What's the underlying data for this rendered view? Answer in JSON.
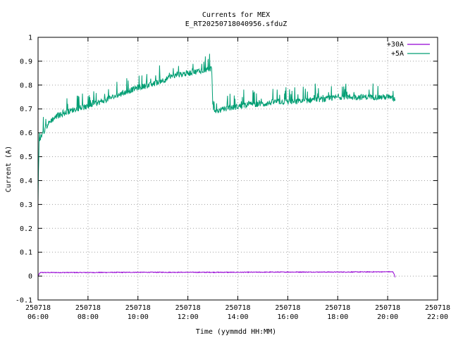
{
  "chart_data": {
    "type": "line",
    "title": "Currents for MEX",
    "subtitle": "E_RT20250718040956.sfduZ",
    "xlabel": "Time (yymmdd HH:MM)",
    "ylabel": "Current (A)",
    "xlim_hours": [
      6,
      22
    ],
    "ylim": [
      -0.1,
      1.0
    ],
    "y_ticks": [
      "-0.1",
      "0",
      "0.1",
      "0.2",
      "0.3",
      "0.4",
      "0.5",
      "0.6",
      "0.7",
      "0.8",
      "0.9",
      "1"
    ],
    "x_ticks": [
      {
        "date": "250718",
        "time": "06:00"
      },
      {
        "date": "250718",
        "time": "08:00"
      },
      {
        "date": "250718",
        "time": "10:00"
      },
      {
        "date": "250718",
        "time": "12:00"
      },
      {
        "date": "250718",
        "time": "14:00"
      },
      {
        "date": "250718",
        "time": "16:00"
      },
      {
        "date": "250718",
        "time": "18:00"
      },
      {
        "date": "250718",
        "time": "20:00"
      },
      {
        "date": "250718",
        "time": "22:00"
      }
    ],
    "grid": true,
    "legend_position": "top-right",
    "series": [
      {
        "name": "+30A",
        "color": "#9400d3",
        "x_hours": [
          6.0,
          6.05,
          6.1,
          6.5,
          8.0,
          10.0,
          12.0,
          14.0,
          16.0,
          18.0,
          20.0,
          20.2,
          20.25,
          20.3
        ],
        "values": [
          0.0,
          0.01,
          0.015,
          0.015,
          0.015,
          0.016,
          0.016,
          0.016,
          0.017,
          0.017,
          0.018,
          0.018,
          0.01,
          -0.005
        ]
      },
      {
        "name": "+5A",
        "color": "#009e73",
        "x_hours": [
          6.0,
          6.02,
          6.05,
          6.1,
          6.2,
          6.3,
          6.5,
          6.75,
          7.0,
          7.5,
          8.0,
          8.5,
          9.0,
          9.5,
          10.0,
          10.5,
          11.0,
          11.5,
          12.0,
          12.5,
          12.95,
          13.0,
          13.1,
          13.5,
          14.0,
          14.5,
          15.0,
          15.5,
          16.0,
          16.5,
          17.0,
          17.5,
          18.0,
          18.5,
          19.0,
          19.5,
          20.0,
          20.3
        ],
        "values": [
          0.31,
          0.45,
          0.55,
          0.58,
          0.6,
          0.62,
          0.65,
          0.67,
          0.68,
          0.7,
          0.71,
          0.73,
          0.75,
          0.77,
          0.79,
          0.8,
          0.82,
          0.84,
          0.85,
          0.86,
          0.87,
          0.7,
          0.69,
          0.7,
          0.71,
          0.72,
          0.72,
          0.73,
          0.73,
          0.73,
          0.74,
          0.74,
          0.75,
          0.75,
          0.75,
          0.75,
          0.75,
          0.74
        ]
      }
    ]
  }
}
